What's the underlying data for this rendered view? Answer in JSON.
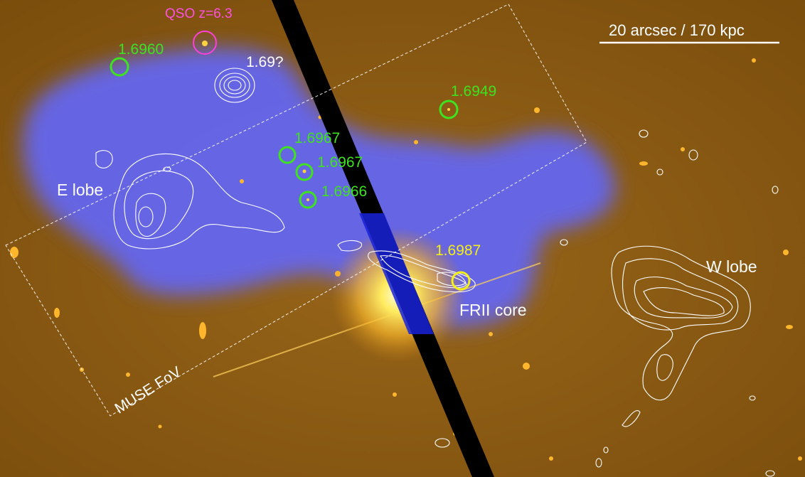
{
  "image": {
    "scale_bar_label": "20 arcsec  / 170 kpc",
    "qso_label": "QSO z=6.3",
    "unknown_z_label": "1.69?",
    "east_lobe_label": "E lobe",
    "west_lobe_label": "W lobe",
    "core_label": "FRII core",
    "core_z_label": "1.6987",
    "fov_label": "MUSE FoV",
    "green_redshifts": [
      "1.6960",
      "1.6949",
      "1.6967",
      "1.6967",
      "1.6966"
    ]
  },
  "colors": {
    "background": "#8a5a12",
    "diffuse_emission": "#6a6cff",
    "contours": "#ffffff",
    "qso": "#ff3fd8",
    "members": "#3ee21f",
    "core": "#f4ef18",
    "star": "#ffe24a"
  }
}
